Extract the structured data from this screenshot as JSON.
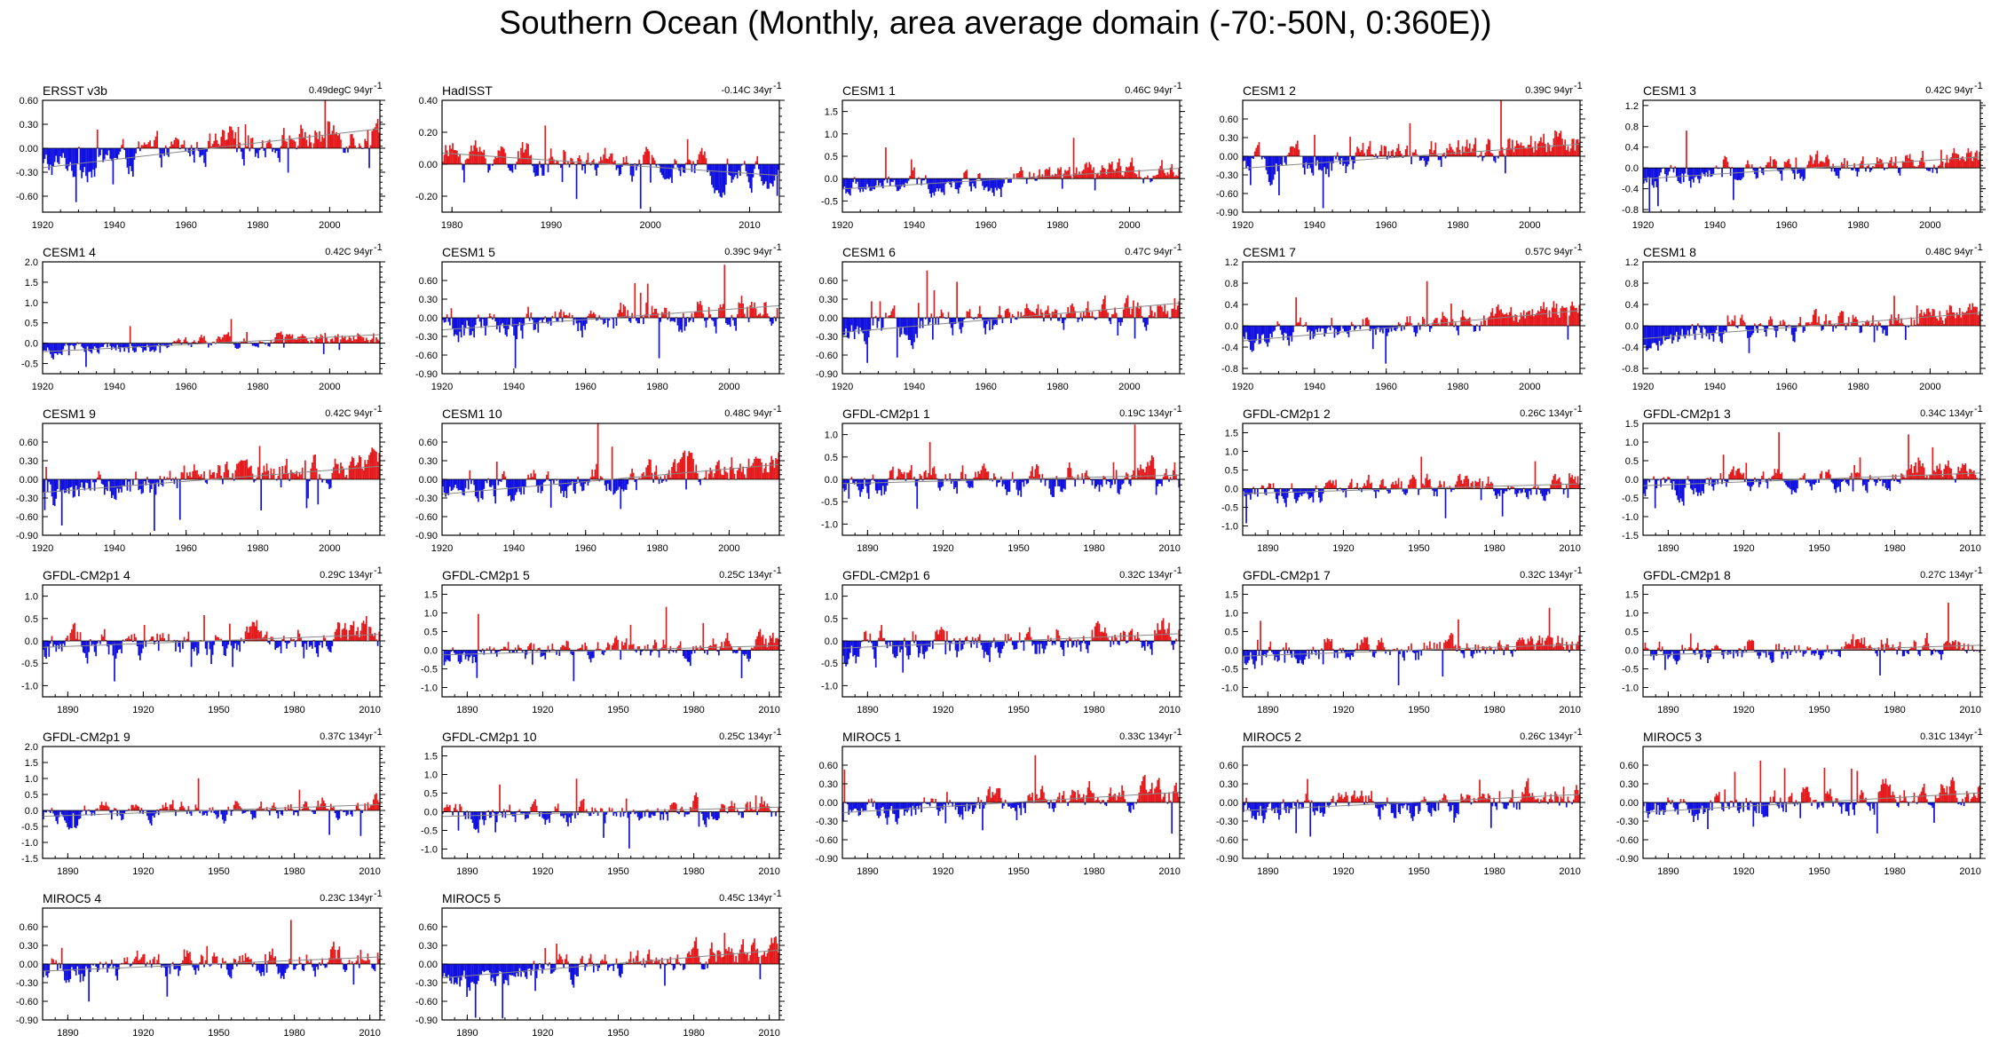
{
  "title": "Southern Ocean (Monthly, area average domain (-70:-50N, 0:360E))",
  "colors": {
    "positive": "#e41a1c",
    "negative": "#1010e0",
    "frame": "#000000",
    "trend": "#888888"
  },
  "chart_data": [
    {
      "type": "bar",
      "title": "ERSST v3b",
      "trend": "0.49degC 94yr",
      "xlim": [
        1920,
        2014
      ],
      "xticks": [
        1920,
        1940,
        1960,
        1980,
        2000
      ],
      "ylim": [
        -0.8,
        0.6
      ],
      "yticks": [
        0.6,
        0.3,
        0.0,
        -0.3,
        -0.6
      ],
      "ytick_labels": [
        "0.60",
        "0.30",
        "0.00",
        "-0.30",
        "-0.60"
      ],
      "amp": 0.25
    },
    {
      "type": "bar",
      "title": "HadISST",
      "trend": "-0.14C 34yr",
      "xlim": [
        1979,
        2013
      ],
      "xticks": [
        1980,
        1990,
        2000,
        2010
      ],
      "ylim": [
        -0.3,
        0.4
      ],
      "yticks": [
        0.4,
        0.2,
        0.0,
        -0.2
      ],
      "ytick_labels": [
        "0.40",
        "0.20",
        "0.00",
        "-0.20"
      ],
      "amp": 0.12
    },
    {
      "type": "bar",
      "title": "CESM1 1",
      "trend": "0.46C 94yr",
      "xlim": [
        1920,
        2014
      ],
      "xticks": [
        1920,
        1940,
        1960,
        1980,
        2000
      ],
      "ylim": [
        -0.75,
        1.75
      ],
      "yticks": [
        1.5,
        1.0,
        0.5,
        0.0,
        -0.5
      ],
      "ytick_labels": [
        "1.5",
        "1.0",
        "0.5",
        "0.0",
        "-0.5"
      ],
      "amp": 0.3
    },
    {
      "type": "bar",
      "title": "CESM1 2",
      "trend": "0.39C 94yr",
      "xlim": [
        1920,
        2014
      ],
      "xticks": [
        1920,
        1940,
        1960,
        1980,
        2000
      ],
      "ylim": [
        -0.9,
        0.9
      ],
      "yticks": [
        0.6,
        0.3,
        0.0,
        -0.3,
        -0.6,
        -0.9
      ],
      "ytick_labels": [
        "0.60",
        "0.30",
        "0.00",
        "-0.30",
        "-0.60",
        "-0.90"
      ],
      "amp": 0.3
    },
    {
      "type": "bar",
      "title": "CESM1 3",
      "trend": "0.42C 94yr",
      "xlim": [
        1920,
        2014
      ],
      "xticks": [
        1920,
        1940,
        1960,
        1980,
        2000
      ],
      "ylim": [
        -0.85,
        1.3
      ],
      "yticks": [
        1.2,
        0.8,
        0.4,
        0.0,
        -0.4,
        -0.8
      ],
      "ytick_labels": [
        "1.2",
        "0.8",
        "0.4",
        "0.0",
        "-0.4",
        "-0.8"
      ],
      "amp": 0.3
    },
    {
      "type": "bar",
      "title": "CESM1 4",
      "trend": "0.42C 94yr",
      "xlim": [
        1920,
        2014
      ],
      "xticks": [
        1920,
        1940,
        1960,
        1980,
        2000
      ],
      "ylim": [
        -0.75,
        2.0
      ],
      "yticks": [
        2.0,
        1.5,
        1.0,
        0.5,
        0.0,
        -0.5
      ],
      "ytick_labels": [
        "2.0",
        "1.5",
        "1.0",
        "0.5",
        "0.0",
        "-0.5"
      ],
      "amp": 0.22
    },
    {
      "type": "bar",
      "title": "CESM1 5",
      "trend": "0.39C 94yr",
      "xlim": [
        1920,
        2014
      ],
      "xticks": [
        1920,
        1940,
        1960,
        1980,
        2000
      ],
      "ylim": [
        -0.9,
        0.9
      ],
      "yticks": [
        0.6,
        0.3,
        0.0,
        -0.3,
        -0.6,
        -0.9
      ],
      "ytick_labels": [
        "0.60",
        "0.30",
        "0.00",
        "-0.30",
        "-0.60",
        "-0.90"
      ],
      "amp": 0.3
    },
    {
      "type": "bar",
      "title": "CESM1 6",
      "trend": "0.47C 94yr",
      "xlim": [
        1920,
        2014
      ],
      "xticks": [
        1920,
        1940,
        1960,
        1980,
        2000
      ],
      "ylim": [
        -0.9,
        0.9
      ],
      "yticks": [
        0.6,
        0.3,
        0.0,
        -0.3,
        -0.6,
        -0.9
      ],
      "ytick_labels": [
        "0.60",
        "0.30",
        "0.00",
        "-0.30",
        "-0.60",
        "-0.90"
      ],
      "amp": 0.3
    },
    {
      "type": "bar",
      "title": "CESM1 7",
      "trend": "0.57C 94yr",
      "xlim": [
        1920,
        2014
      ],
      "xticks": [
        1920,
        1940,
        1960,
        1980,
        2000
      ],
      "ylim": [
        -0.9,
        1.2
      ],
      "yticks": [
        1.2,
        0.8,
        0.4,
        0.0,
        -0.4,
        -0.8
      ],
      "ytick_labels": [
        "1.2",
        "0.8",
        "0.4",
        "0.0",
        "-0.4",
        "-0.8"
      ],
      "amp": 0.3
    },
    {
      "type": "bar",
      "title": "CESM1 8",
      "trend": "0.48C 94yr",
      "xlim": [
        1920,
        2014
      ],
      "xticks": [
        1920,
        1940,
        1960,
        1980,
        2000
      ],
      "ylim": [
        -0.9,
        1.2
      ],
      "yticks": [
        1.2,
        0.8,
        0.4,
        0.0,
        -0.4,
        -0.8
      ],
      "ytick_labels": [
        "1.2",
        "0.8",
        "0.4",
        "0.0",
        "-0.4",
        "-0.8"
      ],
      "amp": 0.3
    },
    {
      "type": "bar",
      "title": "CESM1 9",
      "trend": "0.42C 94yr",
      "xlim": [
        1920,
        2014
      ],
      "xticks": [
        1920,
        1940,
        1960,
        1980,
        2000
      ],
      "ylim": [
        -0.9,
        0.9
      ],
      "yticks": [
        0.6,
        0.3,
        0.0,
        -0.3,
        -0.6,
        -0.9
      ],
      "ytick_labels": [
        "0.60",
        "0.30",
        "0.00",
        "-0.30",
        "-0.60",
        "-0.90"
      ],
      "amp": 0.3
    },
    {
      "type": "bar",
      "title": "CESM1 10",
      "trend": "0.48C 94yr",
      "xlim": [
        1920,
        2014
      ],
      "xticks": [
        1920,
        1940,
        1960,
        1980,
        2000
      ],
      "ylim": [
        -0.9,
        0.9
      ],
      "yticks": [
        0.6,
        0.3,
        0.0,
        -0.3,
        -0.6,
        -0.9
      ],
      "ytick_labels": [
        "0.60",
        "0.30",
        "0.00",
        "-0.30",
        "-0.60",
        "-0.90"
      ],
      "amp": 0.3
    },
    {
      "type": "bar",
      "title": "GFDL-CM2p1 1",
      "trend": "0.19C 134yr",
      "xlim": [
        1880,
        2014
      ],
      "xticks": [
        1890,
        1920,
        1950,
        1980,
        2010
      ],
      "ylim": [
        -1.25,
        1.25
      ],
      "yticks": [
        1.0,
        0.5,
        0.0,
        -0.5,
        -1.0
      ],
      "ytick_labels": [
        "1.0",
        "0.5",
        "0.0",
        "-0.5",
        "-1.0"
      ],
      "amp": 0.4
    },
    {
      "type": "bar",
      "title": "GFDL-CM2p1 2",
      "trend": "0.26C 134yr",
      "xlim": [
        1880,
        2014
      ],
      "xticks": [
        1890,
        1920,
        1950,
        1980,
        2010
      ],
      "ylim": [
        -1.25,
        1.75
      ],
      "yticks": [
        1.5,
        1.0,
        0.5,
        0.0,
        -0.5,
        -1.0
      ],
      "ytick_labels": [
        "1.5",
        "1.0",
        "0.5",
        "0.0",
        "-0.5",
        "-1.0"
      ],
      "amp": 0.4
    },
    {
      "type": "bar",
      "title": "GFDL-CM2p1 3",
      "trend": "0.34C 134yr",
      "xlim": [
        1880,
        2014
      ],
      "xticks": [
        1890,
        1920,
        1950,
        1980,
        2010
      ],
      "ylim": [
        -1.5,
        1.5
      ],
      "yticks": [
        1.5,
        1.0,
        0.5,
        0.0,
        -0.5,
        -1.0,
        -1.5
      ],
      "ytick_labels": [
        "1.5",
        "1.0",
        "0.5",
        "0.0",
        "-0.5",
        "-1.0",
        "-1.5"
      ],
      "amp": 0.4
    },
    {
      "type": "bar",
      "title": "GFDL-CM2p1 4",
      "trend": "0.29C 134yr",
      "xlim": [
        1880,
        2014
      ],
      "xticks": [
        1890,
        1920,
        1950,
        1980,
        2010
      ],
      "ylim": [
        -1.25,
        1.25
      ],
      "yticks": [
        1.0,
        0.5,
        0.0,
        -0.5,
        -1.0
      ],
      "ytick_labels": [
        "1.0",
        "0.5",
        "0.0",
        "-0.5",
        "-1.0"
      ],
      "amp": 0.45
    },
    {
      "type": "bar",
      "title": "GFDL-CM2p1 5",
      "trend": "0.25C 134yr",
      "xlim": [
        1880,
        2014
      ],
      "xticks": [
        1890,
        1920,
        1950,
        1980,
        2010
      ],
      "ylim": [
        -1.25,
        1.75
      ],
      "yticks": [
        1.5,
        1.0,
        0.5,
        0.0,
        -0.5,
        -1.0
      ],
      "ytick_labels": [
        "1.5",
        "1.0",
        "0.5",
        "0.0",
        "-0.5",
        "-1.0"
      ],
      "amp": 0.4
    },
    {
      "type": "bar",
      "title": "GFDL-CM2p1 6",
      "trend": "0.32C 134yr",
      "xlim": [
        1880,
        2014
      ],
      "xticks": [
        1890,
        1920,
        1950,
        1980,
        2010
      ],
      "ylim": [
        -1.25,
        1.25
      ],
      "yticks": [
        1.0,
        0.5,
        0.0,
        -0.5,
        -1.0
      ],
      "ytick_labels": [
        "1.0",
        "0.5",
        "0.0",
        "-0.5",
        "-1.0"
      ],
      "amp": 0.45
    },
    {
      "type": "bar",
      "title": "GFDL-CM2p1 7",
      "trend": "0.32C 134yr",
      "xlim": [
        1880,
        2014
      ],
      "xticks": [
        1890,
        1920,
        1950,
        1980,
        2010
      ],
      "ylim": [
        -1.25,
        1.75
      ],
      "yticks": [
        1.5,
        1.0,
        0.5,
        0.0,
        -0.5,
        -1.0
      ],
      "ytick_labels": [
        "1.5",
        "1.0",
        "0.5",
        "0.0",
        "-0.5",
        "-1.0"
      ],
      "amp": 0.4
    },
    {
      "type": "bar",
      "title": "GFDL-CM2p1 8",
      "trend": "0.27C 134yr",
      "xlim": [
        1880,
        2014
      ],
      "xticks": [
        1890,
        1920,
        1950,
        1980,
        2010
      ],
      "ylim": [
        -1.25,
        1.75
      ],
      "yticks": [
        1.5,
        1.0,
        0.5,
        0.0,
        -0.5,
        -1.0
      ],
      "ytick_labels": [
        "1.5",
        "1.0",
        "0.5",
        "0.0",
        "-0.5",
        "-1.0"
      ],
      "amp": 0.4
    },
    {
      "type": "bar",
      "title": "GFDL-CM2p1 9",
      "trend": "0.37C 134yr",
      "xlim": [
        1880,
        2014
      ],
      "xticks": [
        1890,
        1920,
        1950,
        1980,
        2010
      ],
      "ylim": [
        -1.5,
        2.0
      ],
      "yticks": [
        2.0,
        1.5,
        1.0,
        0.5,
        0.0,
        -0.5,
        -1.0,
        -1.5
      ],
      "ytick_labels": [
        "2.0",
        "1.5",
        "1.0",
        "0.5",
        "0.0",
        "-0.5",
        "-1.0",
        "-1.5"
      ],
      "amp": 0.4
    },
    {
      "type": "bar",
      "title": "GFDL-CM2p1 10",
      "trend": "0.25C 134yr",
      "xlim": [
        1880,
        2014
      ],
      "xticks": [
        1890,
        1920,
        1950,
        1980,
        2010
      ],
      "ylim": [
        -1.25,
        1.75
      ],
      "yticks": [
        1.5,
        1.0,
        0.5,
        0.0,
        -0.5,
        -1.0
      ],
      "ytick_labels": [
        "1.5",
        "1.0",
        "0.5",
        "0.0",
        "-0.5",
        "-1.0"
      ],
      "amp": 0.4
    },
    {
      "type": "bar",
      "title": "MIROC5 1",
      "trend": "0.33C 134yr",
      "xlim": [
        1880,
        2014
      ],
      "xticks": [
        1890,
        1920,
        1950,
        1980,
        2010
      ],
      "ylim": [
        -0.9,
        0.9
      ],
      "yticks": [
        0.6,
        0.3,
        0.0,
        -0.3,
        -0.6,
        -0.9
      ],
      "ytick_labels": [
        "0.60",
        "0.30",
        "0.00",
        "-0.30",
        "-0.60",
        "-0.90"
      ],
      "amp": 0.28
    },
    {
      "type": "bar",
      "title": "MIROC5 2",
      "trend": "0.26C 134yr",
      "xlim": [
        1880,
        2014
      ],
      "xticks": [
        1890,
        1920,
        1950,
        1980,
        2010
      ],
      "ylim": [
        -0.9,
        0.9
      ],
      "yticks": [
        0.6,
        0.3,
        0.0,
        -0.3,
        -0.6,
        -0.9
      ],
      "ytick_labels": [
        "0.60",
        "0.30",
        "0.00",
        "-0.30",
        "-0.60",
        "-0.90"
      ],
      "amp": 0.28
    },
    {
      "type": "bar",
      "title": "MIROC5 3",
      "trend": "0.31C 134yr",
      "xlim": [
        1880,
        2014
      ],
      "xticks": [
        1890,
        1920,
        1950,
        1980,
        2010
      ],
      "ylim": [
        -0.9,
        0.9
      ],
      "yticks": [
        0.6,
        0.3,
        0.0,
        -0.3,
        -0.6,
        -0.9
      ],
      "ytick_labels": [
        "0.60",
        "0.30",
        "0.00",
        "-0.30",
        "-0.60",
        "-0.90"
      ],
      "amp": 0.28
    },
    {
      "type": "bar",
      "title": "MIROC5 4",
      "trend": "0.23C 134yr",
      "xlim": [
        1880,
        2014
      ],
      "xticks": [
        1890,
        1920,
        1950,
        1980,
        2010
      ],
      "ylim": [
        -0.9,
        0.9
      ],
      "yticks": [
        0.6,
        0.3,
        0.0,
        -0.3,
        -0.6,
        -0.9
      ],
      "ytick_labels": [
        "0.60",
        "0.30",
        "0.00",
        "-0.30",
        "-0.60",
        "-0.90"
      ],
      "amp": 0.28
    },
    {
      "type": "bar",
      "title": "MIROC5 5",
      "trend": "0.45C 134yr",
      "xlim": [
        1880,
        2014
      ],
      "xticks": [
        1890,
        1920,
        1950,
        1980,
        2010
      ],
      "ylim": [
        -0.9,
        0.9
      ],
      "yticks": [
        0.6,
        0.3,
        0.0,
        -0.3,
        -0.6,
        -0.9
      ],
      "ytick_labels": [
        "0.60",
        "0.30",
        "0.00",
        "-0.30",
        "-0.60",
        "-0.90"
      ],
      "amp": 0.28
    }
  ]
}
